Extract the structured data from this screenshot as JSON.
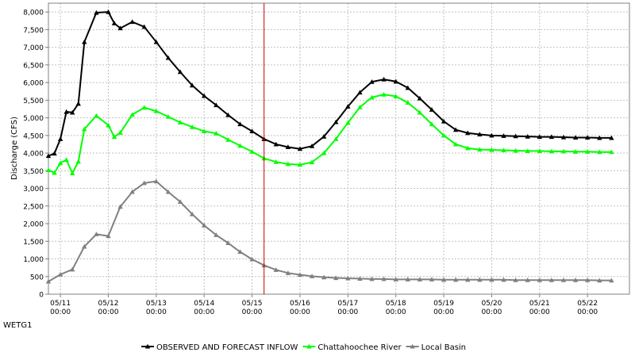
{
  "chart_data": {
    "type": "line",
    "title": "",
    "xlabel": "",
    "ylabel": "Discharge (CFS)",
    "ylim": [
      0,
      8250
    ],
    "yticks": [
      0,
      500,
      1000,
      1500,
      2000,
      2500,
      3000,
      3500,
      4000,
      4500,
      5000,
      5500,
      6000,
      6500,
      7000,
      7500,
      8000
    ],
    "ytick_labels": [
      "0",
      "500",
      "1,000",
      "1,500",
      "2,000",
      "2,500",
      "3,000",
      "3,500",
      "4,000",
      "4,500",
      "5,000",
      "5,500",
      "6,000",
      "6,500",
      "7,000",
      "7,500",
      "8,000"
    ],
    "xlim": [
      "05/10 18:00",
      "05/22 21:00"
    ],
    "xtick_dates": [
      "05/11",
      "05/12",
      "05/13",
      "05/14",
      "05/15",
      "05/16",
      "05/17",
      "05/18",
      "05/19",
      "05/20",
      "05/21",
      "05/22"
    ],
    "xtick_times": [
      "00:00",
      "00:00",
      "00:00",
      "00:00",
      "00:00",
      "00:00",
      "00:00",
      "00:00",
      "00:00",
      "00:00",
      "00:00",
      "00:00"
    ],
    "grid": true,
    "forecast_marker": "05/15 06:00",
    "station": "WETG1",
    "legend_placement": "bottom",
    "colors": {
      "observed": "#000000",
      "chattahoochee": "#00ff00",
      "local": "#808080",
      "forecast_line": "#cc0000"
    },
    "x": [
      "05/10 18:00",
      "05/11 00:00",
      "05/11 06:00",
      "05/11 12:00",
      "05/11 18:00",
      "05/12 00:00",
      "05/12 06:00",
      "05/12 12:00",
      "05/12 18:00",
      "05/13 00:00",
      "05/13 06:00",
      "05/13 12:00",
      "05/13 18:00",
      "05/14 00:00",
      "05/14 06:00",
      "05/14 12:00",
      "05/14 18:00",
      "05/15 00:00",
      "05/15 06:00",
      "05/15 12:00",
      "05/15 18:00",
      "05/16 00:00",
      "05/16 06:00",
      "05/16 12:00",
      "05/16 18:00",
      "05/17 00:00",
      "05/17 06:00",
      "05/17 12:00",
      "05/17 18:00",
      "05/18 00:00",
      "05/18 06:00",
      "05/18 12:00",
      "05/18 18:00",
      "05/19 00:00",
      "05/19 06:00",
      "05/19 12:00",
      "05/19 18:00",
      "05/20 00:00",
      "05/20 06:00",
      "05/20 12:00",
      "05/20 18:00",
      "05/21 00:00",
      "05/21 06:00",
      "05/21 12:00",
      "05/21 18:00",
      "05/22 00:00",
      "05/22 06:00",
      "05/22 12:00"
    ],
    "series": [
      {
        "name": "OBSERVED AND FORECAST INFLOW",
        "color": "#000000",
        "x": [
          "05/10 18:00",
          "05/10 21:00",
          "05/11 00:00",
          "05/11 03:00",
          "05/11 06:00",
          "05/11 09:00",
          "05/11 12:00",
          "05/11 18:00",
          "05/12 00:00",
          "05/12 03:00",
          "05/12 06:00",
          "05/12 12:00",
          "05/12 18:00",
          "05/13 00:00",
          "05/13 06:00",
          "05/13 12:00",
          "05/13 18:00",
          "05/14 00:00",
          "05/14 06:00",
          "05/14 12:00",
          "05/14 18:00",
          "05/15 00:00",
          "05/15 06:00",
          "05/15 12:00",
          "05/15 18:00",
          "05/16 00:00",
          "05/16 06:00",
          "05/16 12:00",
          "05/16 18:00",
          "05/17 00:00",
          "05/17 06:00",
          "05/17 12:00",
          "05/17 18:00",
          "05/18 00:00",
          "05/18 06:00",
          "05/18 12:00",
          "05/18 18:00",
          "05/19 00:00",
          "05/19 06:00",
          "05/19 12:00",
          "05/19 18:00",
          "05/20 00:00",
          "05/20 06:00",
          "05/20 12:00",
          "05/20 18:00",
          "05/21 00:00",
          "05/21 06:00",
          "05/21 12:00",
          "05/21 18:00",
          "05/22 00:00",
          "05/22 06:00",
          "05/22 12:00"
        ],
        "values": [
          3920,
          3990,
          4400,
          5170,
          5150,
          5400,
          7150,
          7980,
          8000,
          7680,
          7540,
          7720,
          7580,
          7150,
          6700,
          6300,
          5920,
          5620,
          5360,
          5080,
          4820,
          4620,
          4400,
          4250,
          4170,
          4120,
          4200,
          4470,
          4880,
          5320,
          5720,
          6020,
          6090,
          6030,
          5850,
          5550,
          5230,
          4900,
          4660,
          4570,
          4530,
          4500,
          4490,
          4480,
          4470,
          4460,
          4460,
          4450,
          4440,
          4440,
          4430,
          4430
        ]
      },
      {
        "name": "Chattahoochee River",
        "color": "#00ff00",
        "x": [
          "05/10 18:00",
          "05/10 21:00",
          "05/11 00:00",
          "05/11 03:00",
          "05/11 06:00",
          "05/11 09:00",
          "05/11 12:00",
          "05/11 18:00",
          "05/12 00:00",
          "05/12 03:00",
          "05/12 06:00",
          "05/12 12:00",
          "05/12 18:00",
          "05/13 00:00",
          "05/13 06:00",
          "05/13 12:00",
          "05/13 18:00",
          "05/14 00:00",
          "05/14 06:00",
          "05/14 12:00",
          "05/14 18:00",
          "05/15 00:00",
          "05/15 06:00",
          "05/15 12:00",
          "05/15 18:00",
          "05/16 00:00",
          "05/16 06:00",
          "05/16 12:00",
          "05/16 18:00",
          "05/17 00:00",
          "05/17 06:00",
          "05/17 12:00",
          "05/17 18:00",
          "05/18 00:00",
          "05/18 06:00",
          "05/18 12:00",
          "05/18 18:00",
          "05/19 00:00",
          "05/19 06:00",
          "05/19 12:00",
          "05/19 18:00",
          "05/20 00:00",
          "05/20 06:00",
          "05/20 12:00",
          "05/20 18:00",
          "05/21 00:00",
          "05/21 06:00",
          "05/21 12:00",
          "05/21 18:00",
          "05/22 00:00",
          "05/22 06:00",
          "05/22 12:00"
        ],
        "values": [
          3520,
          3440,
          3720,
          3810,
          3430,
          3760,
          4680,
          5060,
          4790,
          4460,
          4580,
          5090,
          5290,
          5190,
          5030,
          4870,
          4740,
          4620,
          4560,
          4380,
          4210,
          4040,
          3850,
          3750,
          3690,
          3670,
          3740,
          4000,
          4400,
          4860,
          5300,
          5580,
          5660,
          5610,
          5430,
          5150,
          4820,
          4500,
          4250,
          4140,
          4100,
          4090,
          4080,
          4070,
          4060,
          4060,
          4050,
          4050,
          4040,
          4040,
          4030,
          4030
        ]
      },
      {
        "name": "Local Basin",
        "color": "#808080",
        "x": [
          "05/10 18:00",
          "05/11 00:00",
          "05/11 06:00",
          "05/11 12:00",
          "05/11 18:00",
          "05/12 00:00",
          "05/12 06:00",
          "05/12 12:00",
          "05/12 18:00",
          "05/13 00:00",
          "05/13 06:00",
          "05/13 12:00",
          "05/13 18:00",
          "05/14 00:00",
          "05/14 06:00",
          "05/14 12:00",
          "05/14 18:00",
          "05/15 00:00",
          "05/15 06:00",
          "05/15 12:00",
          "05/15 18:00",
          "05/16 00:00",
          "05/16 06:00",
          "05/16 12:00",
          "05/16 18:00",
          "05/17 00:00",
          "05/17 06:00",
          "05/17 12:00",
          "05/17 18:00",
          "05/18 00:00",
          "05/18 06:00",
          "05/18 12:00",
          "05/18 18:00",
          "05/19 00:00",
          "05/19 06:00",
          "05/19 12:00",
          "05/19 18:00",
          "05/20 00:00",
          "05/20 06:00",
          "05/20 12:00",
          "05/20 18:00",
          "05/21 00:00",
          "05/21 06:00",
          "05/21 12:00",
          "05/21 18:00",
          "05/22 00:00",
          "05/22 06:00",
          "05/22 12:00"
        ],
        "values": [
          360,
          560,
          700,
          1350,
          1700,
          1650,
          2480,
          2900,
          3150,
          3200,
          2900,
          2620,
          2270,
          1950,
          1680,
          1450,
          1200,
          990,
          820,
          690,
          600,
          550,
          510,
          480,
          460,
          450,
          440,
          430,
          430,
          420,
          420,
          420,
          420,
          410,
          410,
          410,
          410,
          410,
          410,
          400,
          400,
          400,
          400,
          400,
          400,
          400,
          390,
          390
        ]
      }
    ]
  }
}
